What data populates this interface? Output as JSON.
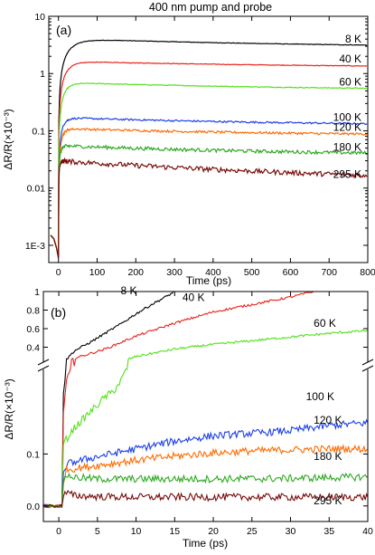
{
  "figure": {
    "title": "400 nm pump and probe"
  },
  "chart_data": [
    {
      "panel_label": "(a)",
      "type": "line",
      "xlabel": "Time (ps)",
      "ylabel": "ΔR/R(×10⁻³)",
      "xlim": [
        -25,
        800
      ],
      "ylim": [
        0.0005,
        10
      ],
      "yscale": "log",
      "x_ticks": [
        0,
        100,
        200,
        300,
        400,
        500,
        600,
        700,
        800
      ],
      "y_ticks": [
        {
          "value": 0.001,
          "label": "1E-3"
        },
        {
          "value": 0.01,
          "label": "0.01"
        },
        {
          "value": 0.1,
          "label": "0.1"
        },
        {
          "value": 1,
          "label": "1"
        },
        {
          "value": 10,
          "label": "10"
        }
      ],
      "series": [
        {
          "name": "8 K",
          "color": "#000000",
          "peak": 4.1,
          "end": 2.8,
          "rise": 28,
          "noise": 0.01
        },
        {
          "name": "40 K",
          "color": "#e8221b",
          "peak": 1.65,
          "end": 1.25,
          "rise": 20,
          "noise": 0.012
        },
        {
          "name": "60 K",
          "color": "#52e01a",
          "peak": 0.7,
          "end": 0.5,
          "rise": 15,
          "noise": 0.015
        },
        {
          "name": "100 K",
          "color": "#1b3fe8",
          "peak": 0.17,
          "end": 0.12,
          "rise": 10,
          "noise": 0.035
        },
        {
          "name": "120 K",
          "color": "#ff6a00",
          "peak": 0.11,
          "end": 0.08,
          "rise": 8,
          "noise": 0.045
        },
        {
          "name": "180 K",
          "color": "#2ca81f",
          "peak": 0.055,
          "end": 0.036,
          "rise": 4,
          "noise": 0.07
        },
        {
          "name": "295 K",
          "color": "#7b0a0a",
          "peak": 0.03,
          "end": 0.012,
          "rise": 2,
          "noise": 0.1
        }
      ]
    },
    {
      "panel_label": "(b)",
      "type": "line",
      "xlabel": "Time (ps)",
      "ylabel": "ΔR/R(×10⁻³)",
      "xlim": [
        -2,
        40
      ],
      "ylim_lower": [
        -0.03,
        0.27
      ],
      "ylim_upper": [
        0.2,
        1.0
      ],
      "axis_break": true,
      "x_ticks": [
        0,
        5,
        10,
        15,
        20,
        25,
        30,
        35,
        40
      ],
      "y_ticks_lower": [
        {
          "value": 0.0,
          "label": "0.0"
        },
        {
          "value": 0.1,
          "label": "0.1"
        }
      ],
      "y_ticks_upper": [
        {
          "value": 0.4,
          "label": "0.4"
        },
        {
          "value": 0.6,
          "label": "0.6"
        },
        {
          "value": 0.8,
          "label": "0.8"
        },
        {
          "value": 1.0,
          "label": "1"
        }
      ],
      "series": [
        {
          "name": "8 K",
          "color": "#000000",
          "x": [
            0.6,
            1,
            2,
            4,
            6,
            8,
            10,
            12,
            14,
            15
          ],
          "y": [
            0.22,
            0.27,
            0.36,
            0.45,
            0.55,
            0.65,
            0.76,
            0.86,
            0.95,
            1.0
          ]
        },
        {
          "name": "40 K",
          "color": "#e8221b",
          "x": [
            0.6,
            1,
            2,
            4,
            6,
            8,
            10,
            15,
            20,
            25,
            30,
            33
          ],
          "y": [
            0.18,
            0.24,
            0.28,
            0.33,
            0.38,
            0.45,
            0.52,
            0.66,
            0.78,
            0.86,
            0.94,
            1.0
          ]
        },
        {
          "name": "60 K",
          "color": "#52e01a",
          "x": [
            0.6,
            2,
            4,
            6,
            7,
            8,
            10,
            15,
            20,
            25,
            30,
            35,
            40
          ],
          "y": [
            0.12,
            0.15,
            0.18,
            0.21,
            0.22,
            0.24,
            0.3,
            0.38,
            0.43,
            0.47,
            0.51,
            0.55,
            0.58
          ]
        },
        {
          "name": "100 K",
          "color": "#1b3fe8",
          "x": [
            0.6,
            1,
            2,
            5,
            10,
            15,
            20,
            25,
            30,
            35,
            40
          ],
          "y": [
            0.06,
            0.08,
            0.085,
            0.095,
            0.11,
            0.125,
            0.135,
            0.14,
            0.145,
            0.155,
            0.16
          ]
        },
        {
          "name": "120 K",
          "color": "#ff6a00",
          "x": [
            0.6,
            1,
            2,
            5,
            10,
            15,
            20,
            25,
            30,
            35,
            40
          ],
          "y": [
            0.05,
            0.07,
            0.072,
            0.078,
            0.088,
            0.096,
            0.102,
            0.106,
            0.108,
            0.11,
            0.11
          ]
        },
        {
          "name": "180 K",
          "color": "#2ca81f",
          "x": [
            0.6,
            1,
            2,
            5,
            10,
            20,
            30,
            40
          ],
          "y": [
            0.04,
            0.06,
            0.055,
            0.052,
            0.052,
            0.052,
            0.053,
            0.056
          ]
        },
        {
          "name": "295 K",
          "color": "#7b0a0a",
          "x": [
            0.6,
            1,
            2,
            5,
            10,
            20,
            30,
            40
          ],
          "y": [
            0.02,
            0.025,
            0.02,
            0.018,
            0.017,
            0.017,
            0.017,
            0.017
          ]
        }
      ]
    }
  ]
}
